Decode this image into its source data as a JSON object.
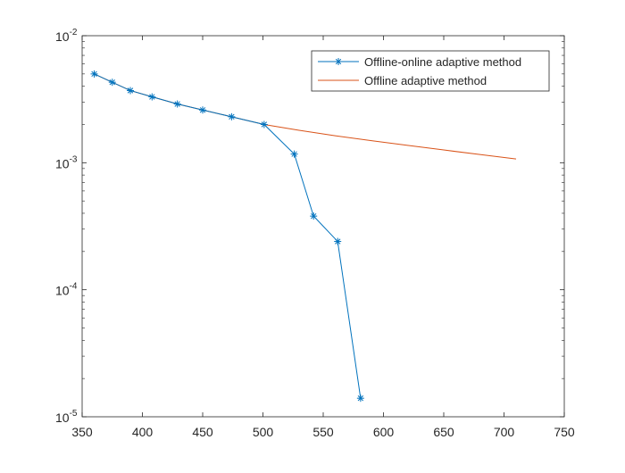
{
  "chart_data": {
    "type": "line",
    "title": "",
    "xlabel": "",
    "ylabel": "",
    "x_scale": "linear",
    "y_scale": "log",
    "xlim": [
      350,
      750
    ],
    "ylim": [
      1e-05,
      0.01
    ],
    "x_ticks": [
      350,
      400,
      450,
      500,
      550,
      600,
      650,
      700,
      750
    ],
    "y_ticks": [
      {
        "value": 1e-05,
        "base": "10",
        "exp": "-5"
      },
      {
        "value": 0.0001,
        "base": "10",
        "exp": "-4"
      },
      {
        "value": 0.001,
        "base": "10",
        "exp": "-3"
      },
      {
        "value": 0.01,
        "base": "10",
        "exp": "-2"
      }
    ],
    "grid": false,
    "legend_position": "top-right",
    "series": [
      {
        "name": "Offline-online adaptive method",
        "color": "#0072BD",
        "marker": "asterisk",
        "x": [
          360,
          375,
          390,
          408,
          429,
          450,
          474,
          501,
          526,
          542,
          562,
          581
        ],
        "y": [
          0.005,
          0.0043,
          0.0037,
          0.0033,
          0.0029,
          0.0026,
          0.0023,
          0.002,
          0.00117,
          0.00038,
          0.00024,
          1.4e-05
        ]
      },
      {
        "name": "Offline adaptive method",
        "color": "#D95319",
        "marker": "none",
        "x": [
          360,
          375,
          390,
          408,
          429,
          450,
          474,
          501,
          530,
          560,
          590,
          620,
          650,
          680,
          710
        ],
        "y": [
          0.005,
          0.0043,
          0.0037,
          0.0033,
          0.0029,
          0.0026,
          0.0023,
          0.002,
          0.0018,
          0.00163,
          0.00149,
          0.00137,
          0.00126,
          0.00116,
          0.00107
        ]
      }
    ]
  }
}
